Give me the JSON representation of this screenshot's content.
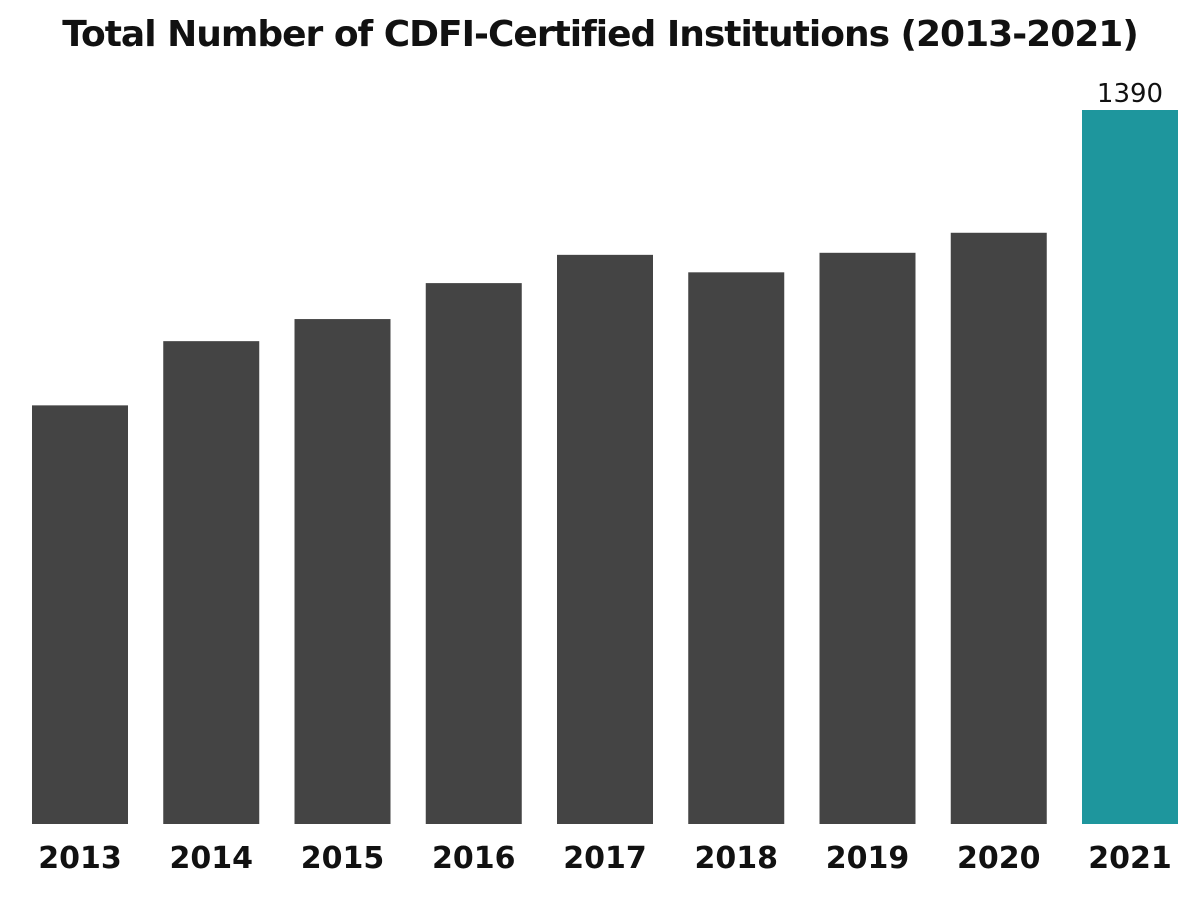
{
  "chart_data": {
    "type": "bar",
    "title": "Total Number of CDFI-Certified Institutions (2013-2021)",
    "categories": [
      "2013",
      "2014",
      "2015",
      "2016",
      "2017",
      "2018",
      "2019",
      "2020",
      "2021"
    ],
    "values": [
      815,
      940,
      983,
      1053,
      1108,
      1074,
      1112,
      1151,
      1390
    ],
    "data_labels": [
      "",
      "",
      "",
      "",
      "",
      "",
      "",
      "",
      "1390"
    ],
    "colors": [
      "#444444",
      "#444444",
      "#444444",
      "#444444",
      "#444444",
      "#444444",
      "#444444",
      "#444444",
      "#1e969d"
    ],
    "xlabel": "",
    "ylabel": "",
    "ylim": [
      0,
      1390
    ],
    "grid": false,
    "legend": "none"
  }
}
